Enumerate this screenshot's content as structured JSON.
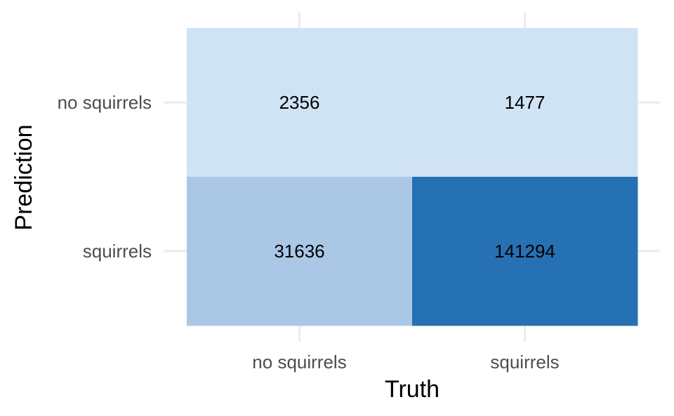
{
  "chart_data": {
    "type": "heatmap",
    "title": "",
    "xlabel": "Truth",
    "ylabel": "Prediction",
    "x_categories": [
      "no squirrels",
      "squirrels"
    ],
    "y_categories": [
      "no squirrels",
      "squirrels"
    ],
    "cells": [
      {
        "truth": "no squirrels",
        "prediction": "no squirrels",
        "value": 2356,
        "color": "#cfe3f5"
      },
      {
        "truth": "squirrels",
        "prediction": "no squirrels",
        "value": 1477,
        "color": "#cfe3f5"
      },
      {
        "truth": "no squirrels",
        "prediction": "squirrels",
        "value": 31636,
        "color": "#aac8e6"
      },
      {
        "truth": "squirrels",
        "prediction": "squirrels",
        "value": 141294,
        "color": "#2671b3"
      }
    ],
    "grid": true,
    "legend": "none"
  }
}
